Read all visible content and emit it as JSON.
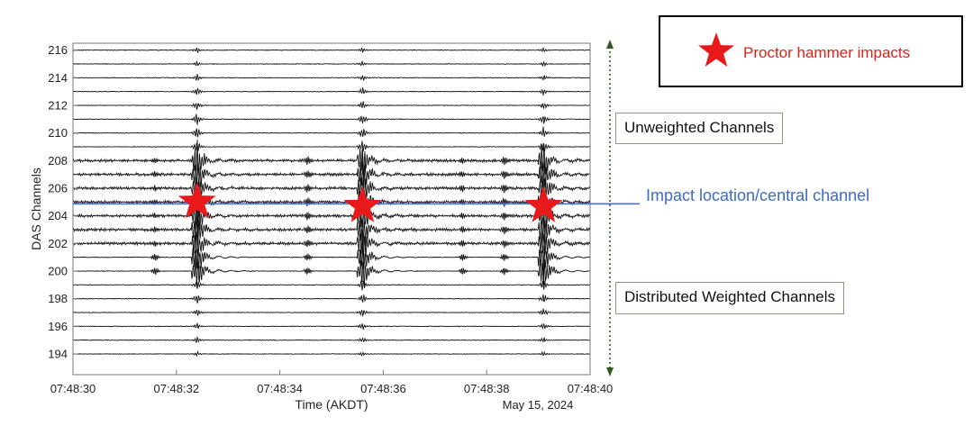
{
  "chart_data": {
    "type": "line",
    "title": "",
    "xlabel": "Time (AKDT)",
    "ylabel": "DAS Channels",
    "date_label": "May 15, 2024",
    "xlim": [
      "07:48:30",
      "07:48:40"
    ],
    "ylim": [
      192.5,
      216.5
    ],
    "x_ticks": [
      "07:48:30",
      "07:48:32",
      "07:48:34",
      "07:48:36",
      "07:48:38",
      "07:48:40"
    ],
    "y_ticks": [
      194,
      196,
      198,
      200,
      202,
      204,
      206,
      208,
      210,
      212,
      214,
      216
    ],
    "channels": [
      194,
      195,
      196,
      197,
      198,
      199,
      200,
      201,
      202,
      203,
      204,
      205,
      206,
      207,
      208,
      209,
      210,
      211,
      212,
      213,
      214,
      215,
      216
    ],
    "impact_channel": 205,
    "active_channels": [
      200,
      208
    ],
    "pre_pulses": [
      "07:48:31.55",
      "07:48:34.5",
      "07:48:37.5",
      "07:48:38.3"
    ],
    "impacts": [
      {
        "time": "07:48:32.4",
        "channel": 205
      },
      {
        "time": "07:48:35.6",
        "channel": 204.7
      },
      {
        "time": "07:48:39.1",
        "channel": 204.7
      }
    ],
    "grid": false,
    "legend_position": "top-right"
  },
  "legend": {
    "label": "Proctor hammer impacts",
    "color": "#e8191b"
  },
  "annotations": {
    "unweighted": "Unweighted Channels",
    "weighted": "Distributed Weighted Channels",
    "central": "Impact location/central channel"
  },
  "colors": {
    "impact_line": "#4a72c4",
    "star": "#e8191b",
    "trace": "#111111",
    "arrow": "#2f5a1e"
  }
}
